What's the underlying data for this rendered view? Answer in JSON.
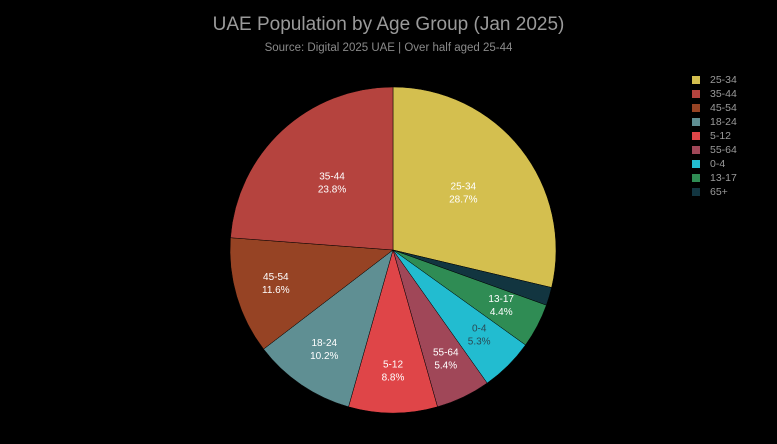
{
  "chart_data": {
    "type": "pie",
    "title": "UAE Population by Age Group (Jan 2025)",
    "subtitle": "Source: Digital 2025 UAE | Over half aged 25-44",
    "legend_position": "top-right",
    "direction": "clockwise",
    "slices": [
      {
        "label": "25-34",
        "value": 28.7,
        "display": "28.7%",
        "color": "#d4bf4f",
        "text_color": "#ffffff"
      },
      {
        "label": "65+",
        "value": 1.8,
        "display": "",
        "color": "#123540",
        "text_color": "#ffffff"
      },
      {
        "label": "13-17",
        "value": 4.4,
        "display": "4.4%",
        "color": "#2f8c54",
        "text_color": "#ffffff"
      },
      {
        "label": "0-4",
        "value": 5.3,
        "display": "5.3%",
        "color": "#22bcd0",
        "text_color": "#2a4a55"
      },
      {
        "label": "55-64",
        "value": 5.4,
        "display": "5.4%",
        "color": "#a04758",
        "text_color": "#ffffff"
      },
      {
        "label": "5-12",
        "value": 8.8,
        "display": "8.8%",
        "color": "#df4548",
        "text_color": "#ffffff"
      },
      {
        "label": "18-24",
        "value": 10.2,
        "display": "10.2%",
        "color": "#5f8f93",
        "text_color": "#ffffff"
      },
      {
        "label": "45-54",
        "value": 11.6,
        "display": "11.6%",
        "color": "#964324",
        "text_color": "#ffffff"
      },
      {
        "label": "35-44",
        "value": 23.8,
        "display": "23.8%",
        "color": "#b5433e",
        "text_color": "#ffffff"
      }
    ],
    "legend_order": [
      "25-34",
      "35-44",
      "45-54",
      "18-24",
      "5-12",
      "55-64",
      "0-4",
      "13-17",
      "65+"
    ]
  }
}
